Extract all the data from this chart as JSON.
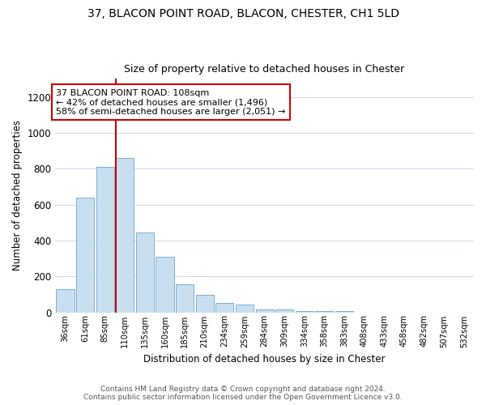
{
  "title1": "37, BLACON POINT ROAD, BLACON, CHESTER, CH1 5LD",
  "title2": "Size of property relative to detached houses in Chester",
  "xlabel": "Distribution of detached houses by size in Chester",
  "ylabel": "Number of detached properties",
  "bar_color": "#c9dff0",
  "bar_edge_color": "#7aafd4",
  "grid_color": "#d0d8e8",
  "vline_color": "#cc0000",
  "annotation_text": "37 BLACON POINT ROAD: 108sqm\n← 42% of detached houses are smaller (1,496)\n58% of semi-detached houses are larger (2,051) →",
  "annotation_box_color": "#cc0000",
  "footnote": "Contains HM Land Registry data © Crown copyright and database right 2024.\nContains public sector information licensed under the Open Government Licence v3.0.",
  "bins": [
    "36sqm",
    "61sqm",
    "85sqm",
    "110sqm",
    "135sqm",
    "160sqm",
    "185sqm",
    "210sqm",
    "234sqm",
    "259sqm",
    "284sqm",
    "309sqm",
    "334sqm",
    "358sqm",
    "383sqm",
    "408sqm",
    "433sqm",
    "458sqm",
    "482sqm",
    "507sqm",
    "532sqm"
  ],
  "values": [
    130,
    640,
    808,
    860,
    445,
    308,
    157,
    95,
    52,
    42,
    18,
    18,
    8,
    5,
    5,
    0,
    0,
    0,
    0,
    0,
    0
  ],
  "ylim": [
    0,
    1300
  ],
  "yticks": [
    0,
    200,
    400,
    600,
    800,
    1000,
    1200
  ],
  "vline_bin_index": 3,
  "figsize": [
    6.0,
    5.0
  ],
  "dpi": 100
}
